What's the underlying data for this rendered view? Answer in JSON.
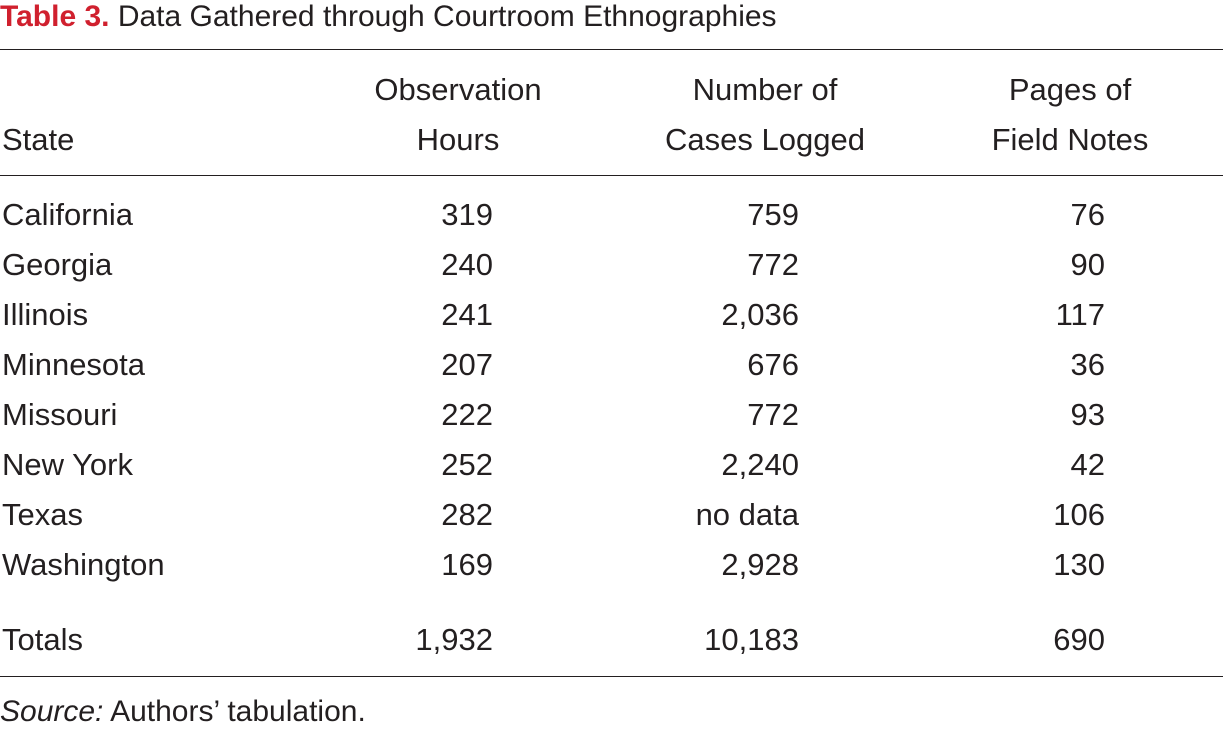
{
  "caption": {
    "label": "Table 3.",
    "title": "Data Gathered through Courtroom Ethnographies"
  },
  "table": {
    "headers": {
      "state": "State",
      "hours_line1": "Observation",
      "hours_line2": "Hours",
      "cases_line1": "Number of",
      "cases_line2": "Cases Logged",
      "pages_line1": "Pages of",
      "pages_line2": "Field Notes"
    },
    "rows": [
      {
        "state": "California",
        "hours": "319",
        "cases": "759",
        "pages": "76"
      },
      {
        "state": "Georgia",
        "hours": "240",
        "cases": "772",
        "pages": "90"
      },
      {
        "state": "Illinois",
        "hours": "241",
        "cases": "2,036",
        "pages": "117"
      },
      {
        "state": "Minnesota",
        "hours": "207",
        "cases": "676",
        "pages": "36"
      },
      {
        "state": "Missouri",
        "hours": "222",
        "cases": "772",
        "pages": "93"
      },
      {
        "state": "New York",
        "hours": "252",
        "cases": "2,240",
        "pages": "42"
      },
      {
        "state": "Texas",
        "hours": "282",
        "cases": "no data",
        "pages": "106"
      },
      {
        "state": "Washington",
        "hours": "169",
        "cases": "2,928",
        "pages": "130"
      }
    ],
    "totals": {
      "label": "Totals",
      "hours": "1,932",
      "cases": "10,183",
      "pages": "690"
    }
  },
  "source": {
    "label": "Source:",
    "text": " Authors’ tabulation."
  }
}
